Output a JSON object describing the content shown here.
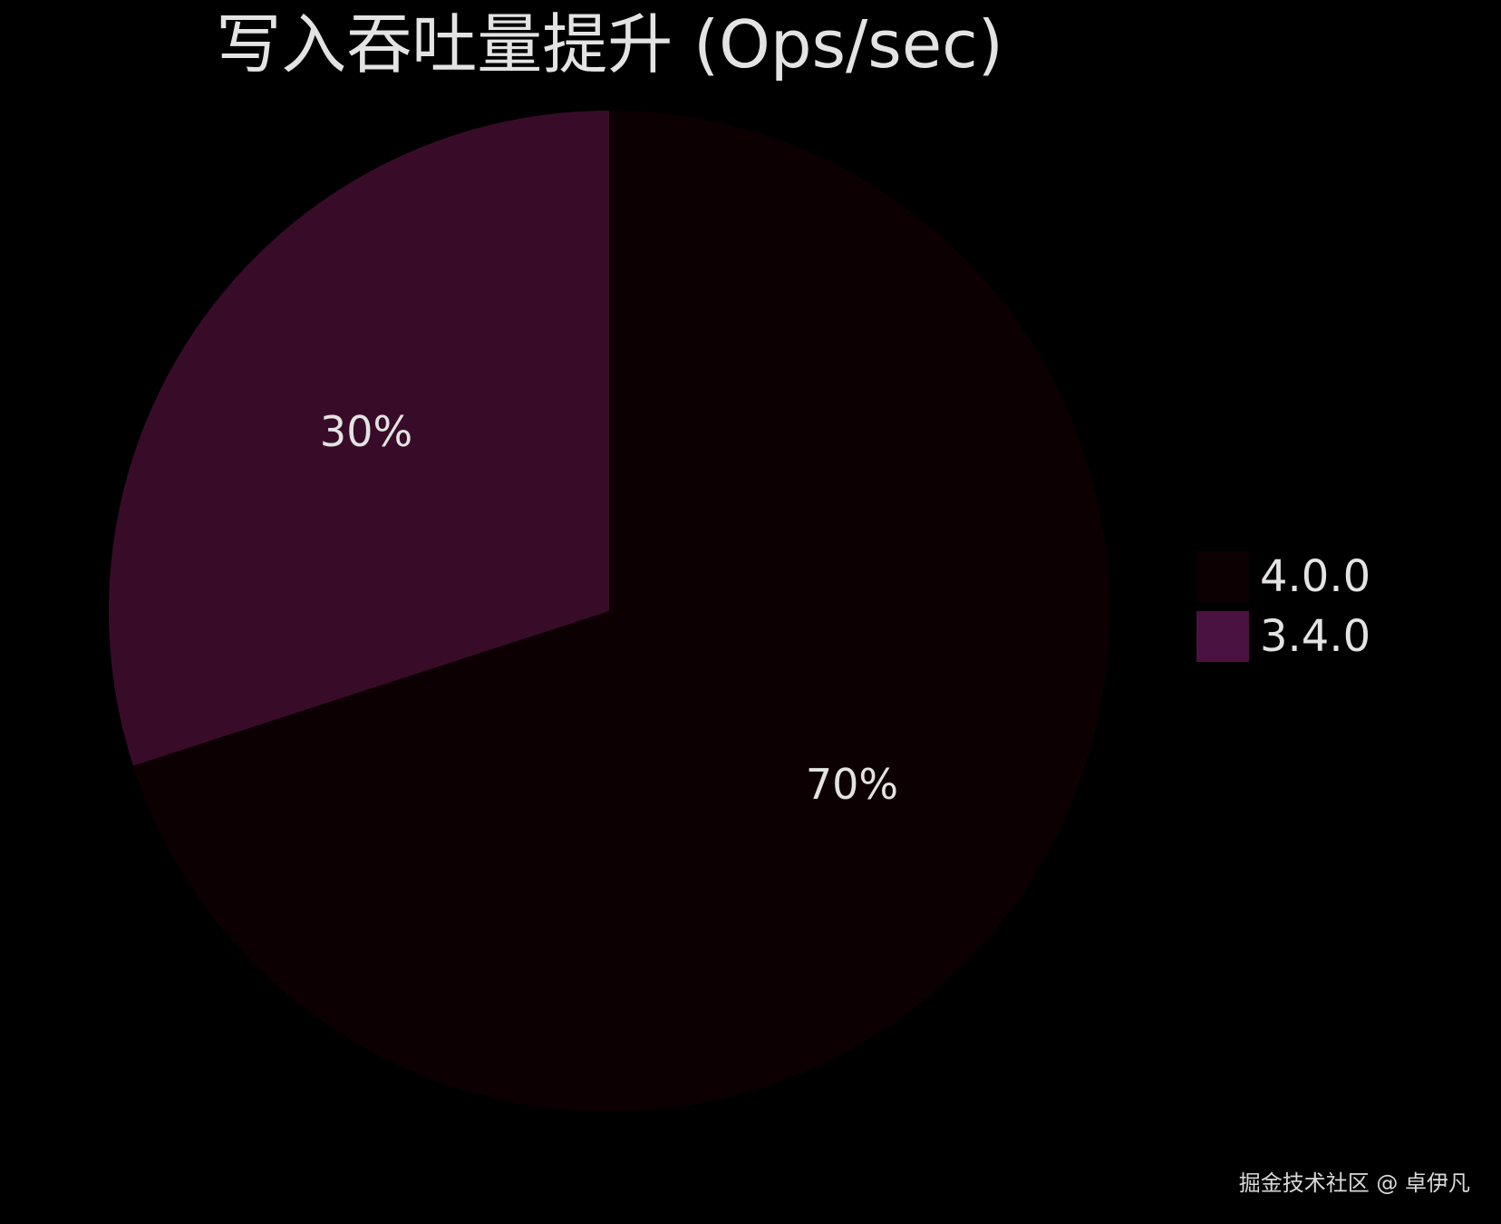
{
  "chart_data": {
    "type": "pie",
    "title": "写入吞吐量提升 (Ops/sec)",
    "categories": [
      "4.0.0",
      "3.4.0"
    ],
    "values": [
      70,
      30
    ],
    "value_labels": [
      "70%",
      "30%"
    ],
    "colors": [
      "#0d0003",
      "#380c28"
    ],
    "legend_colors": [
      "#0d0003",
      "#4a1240"
    ],
    "legend": {
      "position": "right"
    }
  },
  "watermark": "掘金技术社区 @ 卓伊凡"
}
